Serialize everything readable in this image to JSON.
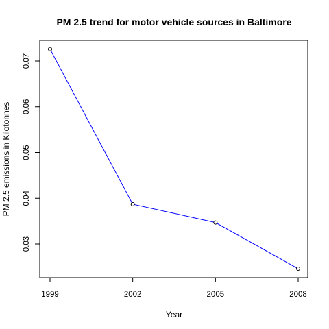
{
  "chart_data": {
    "type": "line",
    "title": "PM 2.5 trend for motor vehicle sources in Baltimore",
    "xlabel": "Year",
    "ylabel": "PM 2.5 emissions in Kilotonnes",
    "x": [
      1999,
      2002,
      2005,
      2008
    ],
    "x_tick_labels": [
      "1999",
      "2002",
      "2005",
      "2008"
    ],
    "y_ticks": [
      0.03,
      0.04,
      0.05,
      0.06,
      0.07
    ],
    "y_tick_labels": [
      "0.03",
      "0.04",
      "0.05",
      "0.06",
      "0.07"
    ],
    "series": [
      {
        "values": [
          0.0726,
          0.0387,
          0.0347,
          0.0246
        ],
        "color": "#0000ff"
      }
    ],
    "xlim": [
      1999,
      2008
    ],
    "ylim": [
      0.03,
      0.07
    ],
    "grid": false,
    "markers": "open-circle"
  }
}
